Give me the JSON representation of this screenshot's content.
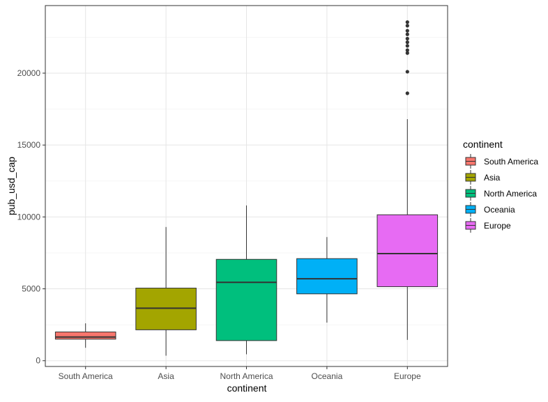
{
  "chart_data": {
    "type": "boxplot",
    "xlabel": "continent",
    "ylabel": "pub_usd_cap",
    "categories": [
      "South America",
      "Asia",
      "North America",
      "Oceania",
      "Europe"
    ],
    "yticks": [
      0,
      5000,
      10000,
      15000,
      20000
    ],
    "ytick_labels": [
      "0",
      "5000",
      "10000",
      "15000",
      "20000"
    ],
    "ylim": [
      -400,
      24700
    ],
    "grid": true,
    "legend": {
      "title": "continent",
      "position": "right",
      "items": [
        "South America",
        "Asia",
        "North America",
        "Oceania",
        "Europe"
      ]
    },
    "colors": {
      "South America": "#F8766D",
      "Asia": "#A3A500",
      "North America": "#00BF7D",
      "Oceania": "#00B0F6",
      "Europe": "#E76BF3"
    },
    "series": [
      {
        "name": "South America",
        "whisker_low": 900,
        "q1": 1500,
        "median": 1650,
        "q3": 2000,
        "whisker_high": 2600,
        "outliers": []
      },
      {
        "name": "Asia",
        "whisker_low": 350,
        "q1": 2150,
        "median": 3650,
        "q3": 5050,
        "whisker_high": 9300,
        "outliers": []
      },
      {
        "name": "North America",
        "whisker_low": 450,
        "q1": 1400,
        "median": 5450,
        "q3": 7050,
        "whisker_high": 10800,
        "outliers": []
      },
      {
        "name": "Oceania",
        "whisker_low": 2650,
        "q1": 4650,
        "median": 5700,
        "q3": 7100,
        "whisker_high": 8600,
        "outliers": []
      },
      {
        "name": "Europe",
        "whisker_low": 1450,
        "q1": 5150,
        "median": 7450,
        "q3": 10150,
        "whisker_high": 16800,
        "outliers": [
          18600,
          20100,
          21400,
          21600,
          21900,
          22150,
          22400,
          22700,
          22950,
          23300,
          23550
        ]
      }
    ]
  }
}
